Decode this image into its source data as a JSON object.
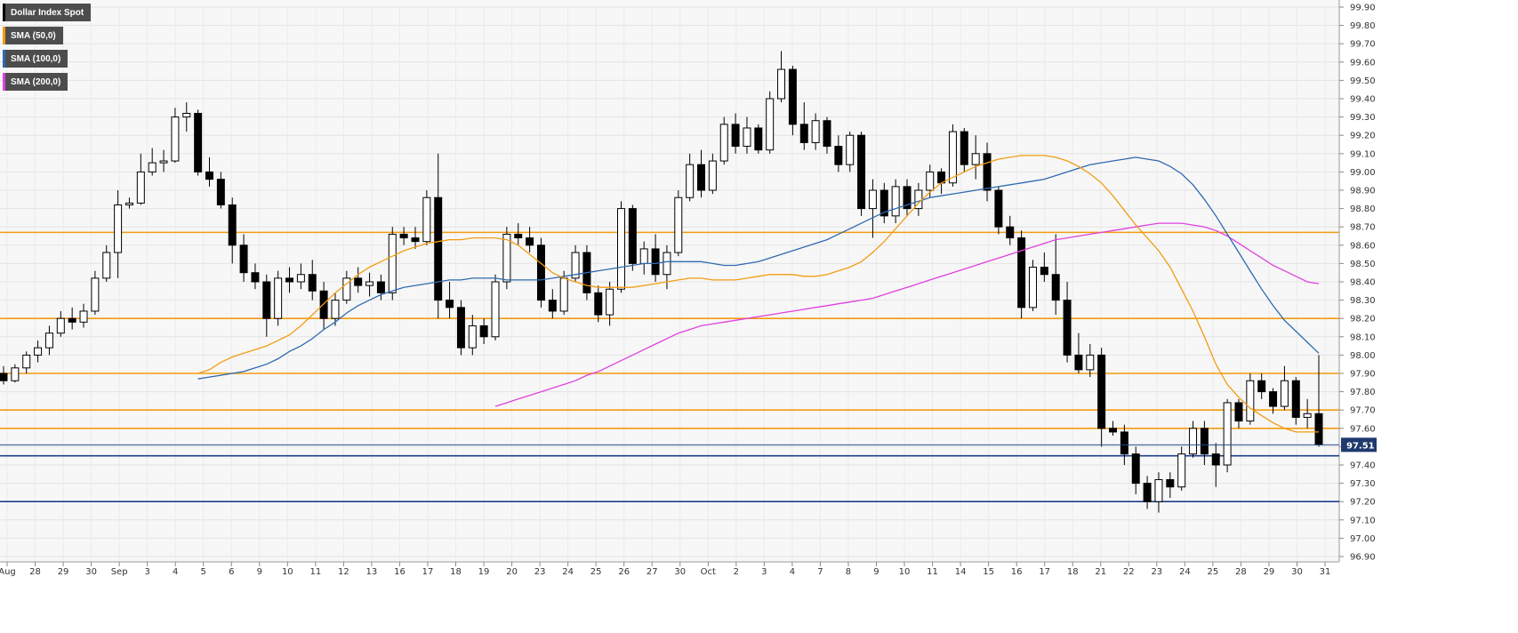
{
  "chart_data": {
    "type": "candlestick",
    "title": "Dollar Index Spot",
    "legend": [
      {
        "label": "Dollar Index Spot",
        "color": "#000000"
      },
      {
        "label": "SMA (50,0)",
        "color": "#f39c12"
      },
      {
        "label": "SMA (100,0)",
        "color": "#2e6ab0"
      },
      {
        "label": "SMA (200,0)",
        "color": "#e040e0"
      }
    ],
    "legend_placement": "top-left",
    "grid": true,
    "y_axis": {
      "position": "right",
      "range": [
        96.9,
        99.9
      ],
      "tick_labels": [
        "99.90",
        "99.80",
        "99.70",
        "99.60",
        "99.50",
        "99.40",
        "99.30",
        "99.20",
        "99.10",
        "99.00",
        "98.90",
        "98.80",
        "98.70",
        "98.60",
        "98.50",
        "98.40",
        "98.30",
        "98.20",
        "98.10",
        "98.00",
        "97.90",
        "97.80",
        "97.70",
        "97.60",
        "97.50",
        "97.40",
        "97.30",
        "97.20",
        "97.10",
        "97.00",
        "96.90"
      ]
    },
    "x_axis": {
      "tick_labels": [
        "Aug",
        "28",
        "29",
        "30",
        "Sep",
        "3",
        "4",
        "5",
        "6",
        "9",
        "10",
        "11",
        "12",
        "13",
        "16",
        "17",
        "18",
        "19",
        "20",
        "23",
        "24",
        "25",
        "26",
        "27",
        "30",
        "Oct",
        "2",
        "3",
        "4",
        "7",
        "8",
        "9",
        "10",
        "11",
        "14",
        "15",
        "16",
        "17",
        "18",
        "21",
        "22",
        "23",
        "24",
        "25",
        "28",
        "29",
        "30",
        "31"
      ]
    },
    "current_price": {
      "value": 97.51,
      "label": "97.51"
    },
    "horizontal_levels": [
      {
        "value": 98.67,
        "color": "#f39c12"
      },
      {
        "value": 98.2,
        "color": "#f39c12"
      },
      {
        "value": 97.9,
        "color": "#f39c12"
      },
      {
        "value": 97.7,
        "color": "#f39c12"
      },
      {
        "value": 97.6,
        "color": "#f39c12"
      },
      {
        "value": 97.45,
        "color": "#1f3f8f"
      },
      {
        "value": 97.2,
        "color": "#1f3f8f"
      }
    ],
    "sma50": [
      97.9,
      97.92,
      97.96,
      97.99,
      98.01,
      98.03,
      98.05,
      98.08,
      98.11,
      98.16,
      98.22,
      98.28,
      98.34,
      98.39,
      98.44,
      98.48,
      98.51,
      98.54,
      98.57,
      98.59,
      98.61,
      98.62,
      98.63,
      98.63,
      98.64,
      98.64,
      98.64,
      98.63,
      98.6,
      98.55,
      98.5,
      98.45,
      98.42,
      98.4,
      98.38,
      98.37,
      98.37,
      98.37,
      98.37,
      98.38,
      98.39,
      98.4,
      98.41,
      98.42,
      98.42,
      98.41,
      98.41,
      98.41,
      98.42,
      98.43,
      98.44,
      98.44,
      98.44,
      98.43,
      98.43,
      98.44,
      98.46,
      98.48,
      98.51,
      98.56,
      98.62,
      98.69,
      98.76,
      98.83,
      98.89,
      98.94,
      98.97,
      99.0,
      99.03,
      99.05,
      99.07,
      99.08,
      99.09,
      99.09,
      99.09,
      99.08,
      99.06,
      99.03,
      98.99,
      98.94,
      98.87,
      98.79,
      98.71,
      98.64,
      98.57,
      98.48,
      98.36,
      98.24,
      98.1,
      97.95,
      97.84,
      97.77,
      97.71,
      97.67,
      97.63,
      97.6,
      97.58,
      97.58,
      97.58
    ],
    "sma100": [
      97.87,
      97.88,
      97.89,
      97.9,
      97.91,
      97.93,
      97.95,
      97.98,
      98.02,
      98.05,
      98.09,
      98.14,
      98.18,
      98.23,
      98.27,
      98.3,
      98.33,
      98.35,
      98.37,
      98.38,
      98.39,
      98.4,
      98.41,
      98.41,
      98.42,
      98.42,
      98.42,
      98.41,
      98.41,
      98.41,
      98.41,
      98.42,
      98.43,
      98.44,
      98.45,
      98.46,
      98.47,
      98.48,
      98.49,
      98.5,
      98.5,
      98.51,
      98.51,
      98.51,
      98.51,
      98.5,
      98.49,
      98.49,
      98.5,
      98.51,
      98.53,
      98.55,
      98.57,
      98.59,
      98.61,
      98.63,
      98.66,
      98.69,
      98.72,
      98.75,
      98.78,
      98.8,
      98.82,
      98.84,
      98.86,
      98.87,
      98.88,
      98.89,
      98.9,
      98.91,
      98.92,
      98.93,
      98.94,
      98.95,
      98.96,
      98.98,
      99.0,
      99.02,
      99.04,
      99.05,
      99.06,
      99.07,
      99.08,
      99.07,
      99.06,
      99.03,
      98.99,
      98.93,
      98.85,
      98.76,
      98.66,
      98.56,
      98.46,
      98.36,
      98.27,
      98.19,
      98.13,
      98.07,
      98.01
    ],
    "sma200": [
      97.72,
      97.74,
      97.76,
      97.78,
      97.8,
      97.82,
      97.84,
      97.86,
      97.89,
      97.91,
      97.94,
      97.97,
      98.0,
      98.03,
      98.06,
      98.09,
      98.12,
      98.14,
      98.16,
      98.17,
      98.18,
      98.19,
      98.2,
      98.21,
      98.22,
      98.23,
      98.24,
      98.25,
      98.26,
      98.27,
      98.28,
      98.29,
      98.3,
      98.31,
      98.33,
      98.35,
      98.37,
      98.39,
      98.41,
      98.43,
      98.45,
      98.47,
      98.49,
      98.51,
      98.53,
      98.55,
      98.57,
      98.59,
      98.61,
      98.63,
      98.64,
      98.65,
      98.66,
      98.67,
      98.68,
      98.69,
      98.7,
      98.71,
      98.72,
      98.72,
      98.72,
      98.71,
      98.7,
      98.68,
      98.65,
      98.61,
      98.57,
      98.53,
      98.49,
      98.46,
      98.43,
      98.4,
      98.39
    ],
    "candles": [
      {
        "o": 97.9,
        "h": 97.94,
        "l": 97.84,
        "c": 97.86
      },
      {
        "o": 97.86,
        "h": 97.95,
        "l": 97.85,
        "c": 97.93
      },
      {
        "o": 97.93,
        "h": 98.02,
        "l": 97.9,
        "c": 98.0
      },
      {
        "o": 98.0,
        "h": 98.08,
        "l": 97.96,
        "c": 98.04
      },
      {
        "o": 98.04,
        "h": 98.16,
        "l": 98.0,
        "c": 98.12
      },
      {
        "o": 98.12,
        "h": 98.24,
        "l": 98.1,
        "c": 98.2
      },
      {
        "o": 98.2,
        "h": 98.26,
        "l": 98.14,
        "c": 98.18
      },
      {
        "o": 98.18,
        "h": 98.28,
        "l": 98.15,
        "c": 98.24
      },
      {
        "o": 98.24,
        "h": 98.46,
        "l": 98.22,
        "c": 98.42
      },
      {
        "o": 98.42,
        "h": 98.6,
        "l": 98.4,
        "c": 98.56
      },
      {
        "o": 98.56,
        "h": 98.9,
        "l": 98.42,
        "c": 98.82
      },
      {
        "o": 98.82,
        "h": 98.86,
        "l": 98.8,
        "c": 98.83
      },
      {
        "o": 98.83,
        "h": 99.1,
        "l": 98.82,
        "c": 99.0
      },
      {
        "o": 99.0,
        "h": 99.13,
        "l": 98.98,
        "c": 99.05
      },
      {
        "o": 99.05,
        "h": 99.12,
        "l": 99.0,
        "c": 99.06
      },
      {
        "o": 99.06,
        "h": 99.35,
        "l": 99.05,
        "c": 99.3
      },
      {
        "o": 99.3,
        "h": 99.38,
        "l": 99.22,
        "c": 99.32
      },
      {
        "o": 99.32,
        "h": 99.34,
        "l": 98.98,
        "c": 99.0
      },
      {
        "o": 99.0,
        "h": 99.08,
        "l": 98.92,
        "c": 98.96
      },
      {
        "o": 98.96,
        "h": 99.0,
        "l": 98.8,
        "c": 98.82
      },
      {
        "o": 98.82,
        "h": 98.86,
        "l": 98.5,
        "c": 98.6
      },
      {
        "o": 98.6,
        "h": 98.66,
        "l": 98.4,
        "c": 98.45
      },
      {
        "o": 98.45,
        "h": 98.5,
        "l": 98.36,
        "c": 98.4
      },
      {
        "o": 98.4,
        "h": 98.44,
        "l": 98.1,
        "c": 98.2
      },
      {
        "o": 98.2,
        "h": 98.46,
        "l": 98.16,
        "c": 98.42
      },
      {
        "o": 98.42,
        "h": 98.48,
        "l": 98.34,
        "c": 98.4
      },
      {
        "o": 98.4,
        "h": 98.5,
        "l": 98.36,
        "c": 98.44
      },
      {
        "o": 98.44,
        "h": 98.52,
        "l": 98.3,
        "c": 98.35
      },
      {
        "o": 98.35,
        "h": 98.4,
        "l": 98.14,
        "c": 98.2
      },
      {
        "o": 98.2,
        "h": 98.34,
        "l": 98.16,
        "c": 98.3
      },
      {
        "o": 98.3,
        "h": 98.46,
        "l": 98.28,
        "c": 98.42
      },
      {
        "o": 98.42,
        "h": 98.48,
        "l": 98.34,
        "c": 98.38
      },
      {
        "o": 98.38,
        "h": 98.45,
        "l": 98.32,
        "c": 98.4
      },
      {
        "o": 98.4,
        "h": 98.44,
        "l": 98.3,
        "c": 98.34
      },
      {
        "o": 98.34,
        "h": 98.7,
        "l": 98.3,
        "c": 98.66
      },
      {
        "o": 98.66,
        "h": 98.7,
        "l": 98.6,
        "c": 98.64
      },
      {
        "o": 98.64,
        "h": 98.7,
        "l": 98.58,
        "c": 98.62
      },
      {
        "o": 98.62,
        "h": 98.9,
        "l": 98.6,
        "c": 98.86
      },
      {
        "o": 98.86,
        "h": 99.1,
        "l": 98.2,
        "c": 98.3
      },
      {
        "o": 98.3,
        "h": 98.4,
        "l": 98.2,
        "c": 98.26
      },
      {
        "o": 98.26,
        "h": 98.3,
        "l": 98.0,
        "c": 98.04
      },
      {
        "o": 98.04,
        "h": 98.22,
        "l": 98.0,
        "c": 98.16
      },
      {
        "o": 98.16,
        "h": 98.2,
        "l": 98.06,
        "c": 98.1
      },
      {
        "o": 98.1,
        "h": 98.44,
        "l": 98.08,
        "c": 98.4
      },
      {
        "o": 98.4,
        "h": 98.7,
        "l": 98.36,
        "c": 98.66
      },
      {
        "o": 98.66,
        "h": 98.72,
        "l": 98.6,
        "c": 98.64
      },
      {
        "o": 98.64,
        "h": 98.7,
        "l": 98.56,
        "c": 98.6
      },
      {
        "o": 98.6,
        "h": 98.64,
        "l": 98.26,
        "c": 98.3
      },
      {
        "o": 98.3,
        "h": 98.36,
        "l": 98.2,
        "c": 98.24
      },
      {
        "o": 98.24,
        "h": 98.46,
        "l": 98.22,
        "c": 98.42
      },
      {
        "o": 98.42,
        "h": 98.6,
        "l": 98.4,
        "c": 98.56
      },
      {
        "o": 98.56,
        "h": 98.6,
        "l": 98.3,
        "c": 98.34
      },
      {
        "o": 98.34,
        "h": 98.38,
        "l": 98.18,
        "c": 98.22
      },
      {
        "o": 98.22,
        "h": 98.4,
        "l": 98.16,
        "c": 98.36
      },
      {
        "o": 98.36,
        "h": 98.84,
        "l": 98.34,
        "c": 98.8
      },
      {
        "o": 98.8,
        "h": 98.82,
        "l": 98.46,
        "c": 98.5
      },
      {
        "o": 98.5,
        "h": 98.62,
        "l": 98.44,
        "c": 98.58
      },
      {
        "o": 98.58,
        "h": 98.66,
        "l": 98.4,
        "c": 98.44
      },
      {
        "o": 98.44,
        "h": 98.6,
        "l": 98.36,
        "c": 98.56
      },
      {
        "o": 98.56,
        "h": 98.9,
        "l": 98.54,
        "c": 98.86
      },
      {
        "o": 98.86,
        "h": 99.1,
        "l": 98.84,
        "c": 99.04
      },
      {
        "o": 99.04,
        "h": 99.12,
        "l": 98.86,
        "c": 98.9
      },
      {
        "o": 98.9,
        "h": 99.1,
        "l": 98.88,
        "c": 99.06
      },
      {
        "o": 99.06,
        "h": 99.3,
        "l": 99.04,
        "c": 99.26
      },
      {
        "o": 99.26,
        "h": 99.32,
        "l": 99.1,
        "c": 99.14
      },
      {
        "o": 99.14,
        "h": 99.3,
        "l": 99.1,
        "c": 99.24
      },
      {
        "o": 99.24,
        "h": 99.26,
        "l": 99.1,
        "c": 99.12
      },
      {
        "o": 99.12,
        "h": 99.44,
        "l": 99.1,
        "c": 99.4
      },
      {
        "o": 99.4,
        "h": 99.66,
        "l": 99.38,
        "c": 99.56
      },
      {
        "o": 99.56,
        "h": 99.58,
        "l": 99.2,
        "c": 99.26
      },
      {
        "o": 99.26,
        "h": 99.38,
        "l": 99.12,
        "c": 99.16
      },
      {
        "o": 99.16,
        "h": 99.32,
        "l": 99.12,
        "c": 99.28
      },
      {
        "o": 99.28,
        "h": 99.3,
        "l": 99.1,
        "c": 99.14
      },
      {
        "o": 99.14,
        "h": 99.2,
        "l": 99.0,
        "c": 99.04
      },
      {
        "o": 99.04,
        "h": 99.22,
        "l": 99.0,
        "c": 99.2
      },
      {
        "o": 99.2,
        "h": 99.22,
        "l": 98.76,
        "c": 98.8
      },
      {
        "o": 98.8,
        "h": 98.96,
        "l": 98.64,
        "c": 98.9
      },
      {
        "o": 98.9,
        "h": 98.94,
        "l": 98.72,
        "c": 98.76
      },
      {
        "o": 98.76,
        "h": 98.96,
        "l": 98.72,
        "c": 98.92
      },
      {
        "o": 98.92,
        "h": 98.96,
        "l": 98.76,
        "c": 98.8
      },
      {
        "o": 98.8,
        "h": 98.94,
        "l": 98.76,
        "c": 98.9
      },
      {
        "o": 98.9,
        "h": 99.04,
        "l": 98.86,
        "c": 99.0
      },
      {
        "o": 99.0,
        "h": 99.02,
        "l": 98.88,
        "c": 98.94
      },
      {
        "o": 98.94,
        "h": 99.26,
        "l": 98.92,
        "c": 99.22
      },
      {
        "o": 99.22,
        "h": 99.24,
        "l": 99.0,
        "c": 99.04
      },
      {
        "o": 99.04,
        "h": 99.2,
        "l": 98.96,
        "c": 99.1
      },
      {
        "o": 99.1,
        "h": 99.16,
        "l": 98.84,
        "c": 98.9
      },
      {
        "o": 98.9,
        "h": 98.92,
        "l": 98.66,
        "c": 98.7
      },
      {
        "o": 98.7,
        "h": 98.76,
        "l": 98.6,
        "c": 98.64
      },
      {
        "o": 98.64,
        "h": 98.68,
        "l": 98.2,
        "c": 98.26
      },
      {
        "o": 98.26,
        "h": 98.52,
        "l": 98.24,
        "c": 98.48
      },
      {
        "o": 98.48,
        "h": 98.56,
        "l": 98.4,
        "c": 98.44
      },
      {
        "o": 98.44,
        "h": 98.66,
        "l": 98.22,
        "c": 98.3
      },
      {
        "o": 98.3,
        "h": 98.4,
        "l": 97.96,
        "c": 98.0
      },
      {
        "o": 98.0,
        "h": 98.12,
        "l": 97.9,
        "c": 97.92
      },
      {
        "o": 97.92,
        "h": 98.06,
        "l": 97.88,
        "c": 98.0
      },
      {
        "o": 98.0,
        "h": 98.04,
        "l": 97.5,
        "c": 97.6
      },
      {
        "o": 97.6,
        "h": 97.64,
        "l": 97.56,
        "c": 97.58
      },
      {
        "o": 97.58,
        "h": 97.62,
        "l": 97.4,
        "c": 97.46
      },
      {
        "o": 97.46,
        "h": 97.5,
        "l": 97.24,
        "c": 97.3
      },
      {
        "o": 97.3,
        "h": 97.34,
        "l": 97.16,
        "c": 97.2
      },
      {
        "o": 97.2,
        "h": 97.36,
        "l": 97.14,
        "c": 97.32
      },
      {
        "o": 97.32,
        "h": 97.36,
        "l": 97.22,
        "c": 97.28
      },
      {
        "o": 97.28,
        "h": 97.5,
        "l": 97.26,
        "c": 97.46
      },
      {
        "o": 97.46,
        "h": 97.64,
        "l": 97.44,
        "c": 97.6
      },
      {
        "o": 97.6,
        "h": 97.64,
        "l": 97.4,
        "c": 97.46
      },
      {
        "o": 97.46,
        "h": 97.52,
        "l": 97.28,
        "c": 97.4
      },
      {
        "o": 97.4,
        "h": 97.76,
        "l": 97.36,
        "c": 97.74
      },
      {
        "o": 97.74,
        "h": 97.76,
        "l": 97.6,
        "c": 97.64
      },
      {
        "o": 97.64,
        "h": 97.9,
        "l": 97.62,
        "c": 97.86
      },
      {
        "o": 97.86,
        "h": 97.9,
        "l": 97.76,
        "c": 97.8
      },
      {
        "o": 97.8,
        "h": 97.82,
        "l": 97.68,
        "c": 97.72
      },
      {
        "o": 97.72,
        "h": 97.94,
        "l": 97.7,
        "c": 97.86
      },
      {
        "o": 97.86,
        "h": 97.88,
        "l": 97.62,
        "c": 97.66
      },
      {
        "o": 97.66,
        "h": 97.76,
        "l": 97.6,
        "c": 97.68
      },
      {
        "o": 97.68,
        "h": 98.0,
        "l": 97.5,
        "c": 97.51
      }
    ]
  }
}
